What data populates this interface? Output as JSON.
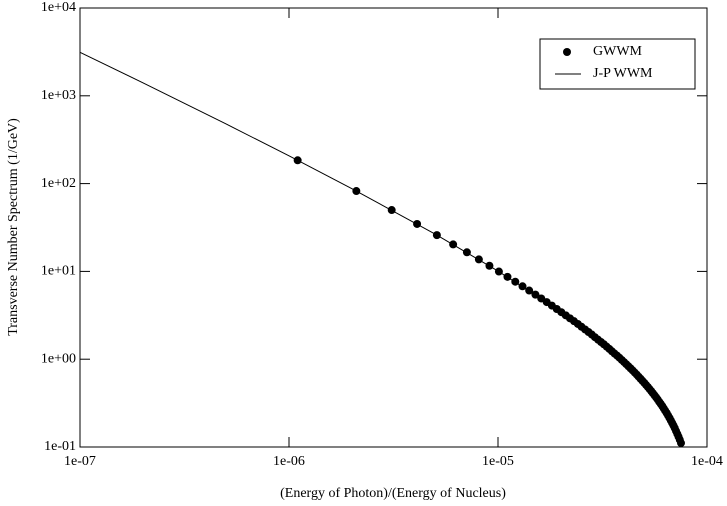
{
  "chart_data": {
    "type": "line",
    "xlabel": "(Energy of Photon)/(Energy of Nucleus)",
    "ylabel": "Transverse Number Spectrum (1/GeV)",
    "xlog": true,
    "ylog": true,
    "xlim": [
      1e-07,
      0.0001
    ],
    "ylim": [
      0.1,
      10000
    ],
    "xticks": [
      {
        "value": 1e-07,
        "label": "1e-07"
      },
      {
        "value": 1e-06,
        "label": "1e-06"
      },
      {
        "value": 1e-05,
        "label": "1e-05"
      },
      {
        "value": 0.0001,
        "label": "1e-04"
      }
    ],
    "yticks": [
      {
        "value": 0.1,
        "label": "1e-01"
      },
      {
        "value": 1,
        "label": "1e+00"
      },
      {
        "value": 10,
        "label": "1e+01"
      },
      {
        "value": 100,
        "label": "1e+02"
      },
      {
        "value": 1000,
        "label": "1e+03"
      },
      {
        "value": 10000,
        "label": "1e+04"
      }
    ],
    "legend": "upper right",
    "series": [
      {
        "name": "GWWM",
        "type": "scatter",
        "color": "#000000",
        "x": [
          1.1e-06,
          2.1e-06,
          3.1e-06,
          4.1e-06,
          5.1e-06,
          6.1e-06,
          7.1e-06,
          8.1e-06,
          9.1e-06,
          1.01e-05,
          1.11e-05,
          1.21e-05,
          1.31e-05,
          1.41e-05,
          1.51e-05,
          1.61e-05,
          1.71e-05,
          1.81e-05,
          1.91e-05,
          2.01e-05,
          2.11e-05,
          2.21e-05,
          2.31e-05,
          2.41e-05,
          2.51e-05,
          2.61e-05,
          2.71e-05,
          2.81e-05,
          2.91e-05,
          3.01e-05,
          3.11e-05,
          3.21e-05,
          3.31e-05,
          3.41e-05,
          3.51e-05,
          3.61e-05,
          3.71e-05,
          3.81e-05,
          3.91e-05,
          4.01e-05,
          4.11e-05,
          4.21e-05,
          4.31e-05,
          4.41e-05,
          4.51e-05,
          4.61e-05,
          4.71e-05,
          4.81e-05,
          4.91e-05,
          5.01e-05,
          5.11e-05,
          5.21e-05,
          5.31e-05,
          5.41e-05,
          5.51e-05,
          5.61e-05,
          5.71e-05,
          5.81e-05,
          5.91e-05,
          6.01e-05,
          6.11e-05,
          6.21e-05,
          6.31e-05,
          6.41e-05,
          6.51e-05,
          6.61e-05,
          6.71e-05,
          6.81e-05,
          6.91e-05,
          7.01e-05,
          7.11e-05,
          7.21e-05,
          7.31e-05,
          7.41e-05,
          7.51e-05
        ],
        "values": [
          184.2,
          82.3,
          50.0,
          34.7,
          25.9,
          20.3,
          16.5,
          13.7,
          11.6,
          9.96,
          8.67,
          7.63,
          6.77,
          6.05,
          5.44,
          4.92,
          4.47,
          4.08,
          3.73,
          3.43,
          3.16,
          2.92,
          2.71,
          2.52,
          2.34,
          2.18,
          2.04,
          1.91,
          1.78,
          1.67,
          1.57,
          1.48,
          1.39,
          1.31,
          1.23,
          1.16,
          1.1,
          1.04,
          0.98,
          0.927,
          0.877,
          0.83,
          0.786,
          0.744,
          0.705,
          0.668,
          0.632,
          0.599,
          0.568,
          0.538,
          0.509,
          0.483,
          0.457,
          0.433,
          0.41,
          0.388,
          0.367,
          0.347,
          0.327,
          0.309,
          0.292,
          0.275,
          0.259,
          0.244,
          0.229,
          0.215,
          0.201,
          0.188,
          0.176,
          0.164,
          0.152,
          0.141,
          0.131,
          0.121,
          0.111
        ]
      },
      {
        "name": "J-P WWM",
        "type": "line",
        "color": "#000000",
        "x": [
          1e-07,
          2e-07,
          5e-07,
          1e-06,
          2e-06,
          5e-06,
          1e-05,
          2e-05,
          3e-05,
          4e-05,
          5e-05,
          6e-05,
          7e-05,
          7.6e-05
        ],
        "values": [
          3129,
          1405,
          477.7,
          207,
          87.6,
          26.6,
          10.1,
          3.46,
          1.68,
          0.933,
          0.541,
          0.311,
          0.165,
          0.102
        ]
      }
    ]
  }
}
